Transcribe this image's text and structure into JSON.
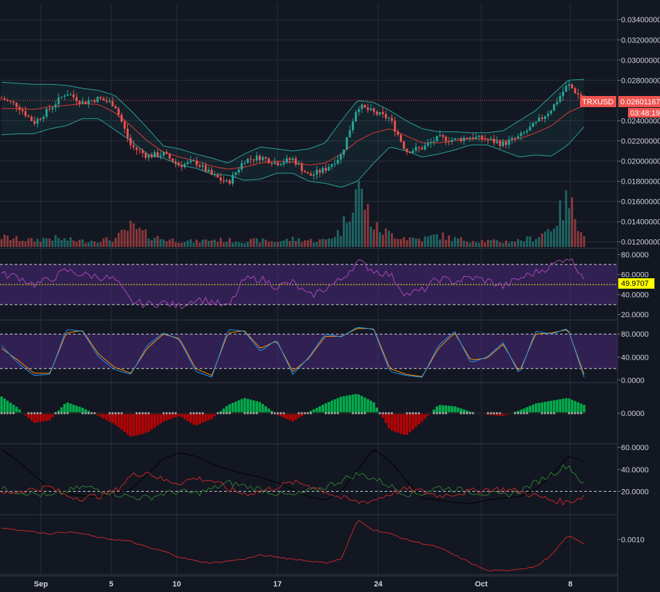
{
  "symbol": "TRXUSD",
  "last_price": "0.02601167",
  "countdown": "03:48:19",
  "colors": {
    "background": "#131722",
    "grid": "#2a2e39",
    "up": "#26a69a",
    "down": "#ef5350",
    "bollinger": "#26a69a",
    "basis": "#e53935",
    "rsi": "#ab47bc",
    "band_fill": "#4a2a7a",
    "stoch_k": "#2196f3",
    "stoch_d": "#ff9800",
    "hist_up": "#00c853",
    "hist_down": "#d50000",
    "marker": "#9e9e9e",
    "rsi_value_bg": "#ffff00"
  },
  "chart_data": [
    {
      "type": "candlestick",
      "name": "price",
      "price_axis_labels": [
        "0.03400000",
        "0.03200000",
        "0.03000000",
        "0.02800000",
        "0.02400000",
        "0.02200000",
        "0.02000000",
        "0.01800000",
        "0.01600000",
        "0.01400000",
        "0.01200000"
      ],
      "ylim": [
        0.0115,
        0.0356
      ],
      "close_path": [
        0.0262,
        0.0255,
        0.0238,
        0.0252,
        0.0268,
        0.0258,
        0.0262,
        0.0256,
        0.0215,
        0.0205,
        0.0207,
        0.0196,
        0.0199,
        0.0186,
        0.0178,
        0.0201,
        0.0204,
        0.0198,
        0.0202,
        0.0185,
        0.0192,
        0.0206,
        0.0255,
        0.0248,
        0.0242,
        0.021,
        0.0213,
        0.0223,
        0.0221,
        0.0224,
        0.0221,
        0.0217,
        0.0224,
        0.0237,
        0.0252,
        0.0276,
        0.026
      ],
      "bollinger_upper": [
        0.0278,
        0.0277,
        0.0276,
        0.0276,
        0.0275,
        0.0272,
        0.027,
        0.0265,
        0.025,
        0.0233,
        0.0215,
        0.0212,
        0.0207,
        0.0203,
        0.0198,
        0.0207,
        0.0214,
        0.0212,
        0.021,
        0.0212,
        0.0218,
        0.024,
        0.026,
        0.0258,
        0.025,
        0.024,
        0.0232,
        0.0229,
        0.0229,
        0.0228,
        0.0228,
        0.023,
        0.024,
        0.025,
        0.0265,
        0.028,
        0.0281
      ],
      "bollinger_basis": [
        0.0252,
        0.0252,
        0.0251,
        0.0254,
        0.0255,
        0.0257,
        0.0256,
        0.0248,
        0.0235,
        0.022,
        0.0209,
        0.0204,
        0.02,
        0.0195,
        0.0192,
        0.0194,
        0.0198,
        0.02,
        0.0199,
        0.0196,
        0.0198,
        0.0207,
        0.022,
        0.0228,
        0.0232,
        0.0225,
        0.0218,
        0.0218,
        0.022,
        0.0222,
        0.0222,
        0.022,
        0.0222,
        0.0228,
        0.0235,
        0.0248,
        0.0255
      ],
      "bollinger_lower": [
        0.0226,
        0.0227,
        0.0227,
        0.0232,
        0.0235,
        0.0242,
        0.0242,
        0.0231,
        0.022,
        0.0207,
        0.0203,
        0.0196,
        0.0193,
        0.0187,
        0.0186,
        0.0181,
        0.0182,
        0.0188,
        0.0188,
        0.018,
        0.0178,
        0.0174,
        0.018,
        0.0198,
        0.0214,
        0.021,
        0.0204,
        0.0207,
        0.0211,
        0.0216,
        0.0216,
        0.021,
        0.0204,
        0.0206,
        0.0205,
        0.0216,
        0.0234
      ],
      "volume": [
        0.15,
        0.12,
        0.1,
        0.14,
        0.11,
        0.09,
        0.1,
        0.12,
        0.3,
        0.18,
        0.12,
        0.1,
        0.08,
        0.11,
        0.1,
        0.09,
        0.1,
        0.08,
        0.12,
        0.1,
        0.1,
        0.25,
        0.95,
        0.3,
        0.2,
        0.14,
        0.12,
        0.18,
        0.12,
        0.1,
        0.09,
        0.08,
        0.1,
        0.14,
        0.3,
        0.7,
        0.22
      ]
    },
    {
      "type": "line",
      "name": "rsi",
      "axis_labels": [
        "80.0000",
        "60.0000",
        "40.0000",
        "20.0000"
      ],
      "current_value": "49.9707",
      "ylim": [
        16,
        84
      ],
      "bands": [
        30,
        70
      ],
      "midline": 50,
      "values": [
        60,
        58,
        50,
        55,
        64,
        60,
        58,
        55,
        33,
        30,
        32,
        28,
        36,
        33,
        27,
        55,
        56,
        48,
        52,
        38,
        46,
        55,
        73,
        64,
        60,
        40,
        44,
        56,
        53,
        57,
        54,
        48,
        56,
        62,
        69,
        78,
        58
      ]
    },
    {
      "type": "line",
      "name": "stochastic",
      "axis_labels": [
        "80.0000",
        "40.0000",
        "0.0000"
      ],
      "ylim": [
        -2,
        102
      ],
      "bands": [
        20,
        80
      ],
      "k": [
        60,
        30,
        8,
        10,
        88,
        85,
        40,
        18,
        10,
        60,
        82,
        70,
        15,
        5,
        88,
        85,
        50,
        70,
        10,
        40,
        80,
        75,
        92,
        88,
        15,
        8,
        5,
        60,
        85,
        30,
        40,
        65,
        10,
        85,
        80,
        90,
        5
      ],
      "d": [
        55,
        35,
        12,
        12,
        82,
        86,
        45,
        22,
        12,
        55,
        80,
        72,
        20,
        8,
        82,
        86,
        55,
        68,
        15,
        38,
        76,
        76,
        90,
        89,
        20,
        10,
        6,
        55,
        82,
        35,
        38,
        62,
        14,
        80,
        82,
        88,
        10
      ]
    },
    {
      "type": "bar",
      "name": "squeeze_momentum",
      "axis_labels": [
        "0.0000"
      ],
      "ylim": [
        -1,
        1
      ],
      "values": [
        0.6,
        0.2,
        -0.35,
        -0.25,
        0.4,
        0.2,
        -0.1,
        -0.4,
        -0.85,
        -0.7,
        -0.3,
        -0.1,
        -0.45,
        -0.2,
        0.3,
        0.55,
        0.4,
        -0.05,
        -0.3,
        0.05,
        0.35,
        0.6,
        0.7,
        0.4,
        -0.6,
        -0.8,
        -0.3,
        0.3,
        0.25,
        0.05,
        -0.05,
        -0.1,
        0.1,
        0.35,
        0.45,
        0.55,
        0.3
      ]
    },
    {
      "type": "line",
      "name": "dmi",
      "axis_labels": [
        "60.0000",
        "40.0000",
        "20.0000"
      ],
      "ylim": [
        0,
        62
      ],
      "reference": 20,
      "adx": [
        58,
        48,
        35,
        22,
        18,
        16,
        15,
        18,
        22,
        35,
        50,
        55,
        52,
        45,
        40,
        36,
        33,
        28,
        22,
        15,
        12,
        20,
        40,
        58,
        48,
        30,
        14,
        12,
        10,
        9,
        12,
        14,
        15,
        22,
        35,
        52,
        47
      ],
      "plus_di": [
        22,
        20,
        18,
        15,
        20,
        24,
        22,
        18,
        15,
        14,
        18,
        20,
        18,
        22,
        28,
        25,
        22,
        18,
        16,
        20,
        24,
        30,
        36,
        32,
        25,
        18,
        18,
        24,
        22,
        20,
        18,
        16,
        20,
        28,
        36,
        44,
        26
      ],
      "minus_di": [
        18,
        20,
        22,
        24,
        16,
        14,
        16,
        20,
        34,
        38,
        30,
        28,
        32,
        30,
        22,
        18,
        20,
        24,
        28,
        26,
        20,
        14,
        10,
        12,
        18,
        22,
        20,
        16,
        18,
        20,
        22,
        22,
        20,
        16,
        12,
        10,
        16
      ]
    },
    {
      "type": "line",
      "name": "volatility",
      "axis_labels": [
        "0.0010"
      ],
      "ylim": [
        0.0001,
        0.0016
      ],
      "values": [
        0.0013,
        0.00125,
        0.0012,
        0.00115,
        0.0012,
        0.00115,
        0.00105,
        0.001,
        0.00095,
        0.0008,
        0.0007,
        0.00055,
        0.00045,
        0.0004,
        0.00045,
        0.0005,
        0.0006,
        0.00055,
        0.0005,
        0.00045,
        0.0004,
        0.0005,
        0.0015,
        0.00125,
        0.00115,
        0.001,
        0.0009,
        0.0008,
        0.0006,
        0.0004,
        0.0002,
        0.0002,
        0.00025,
        0.0003,
        0.0006,
        0.0011,
        0.0009
      ]
    }
  ],
  "time_axis": {
    "labels": [
      "Sep",
      "5",
      "10",
      "17",
      "24",
      "Oct",
      "8"
    ],
    "positions": [
      1.45,
      4.45,
      7.25,
      11.55,
      15.85,
      20.25,
      24.05
    ]
  }
}
